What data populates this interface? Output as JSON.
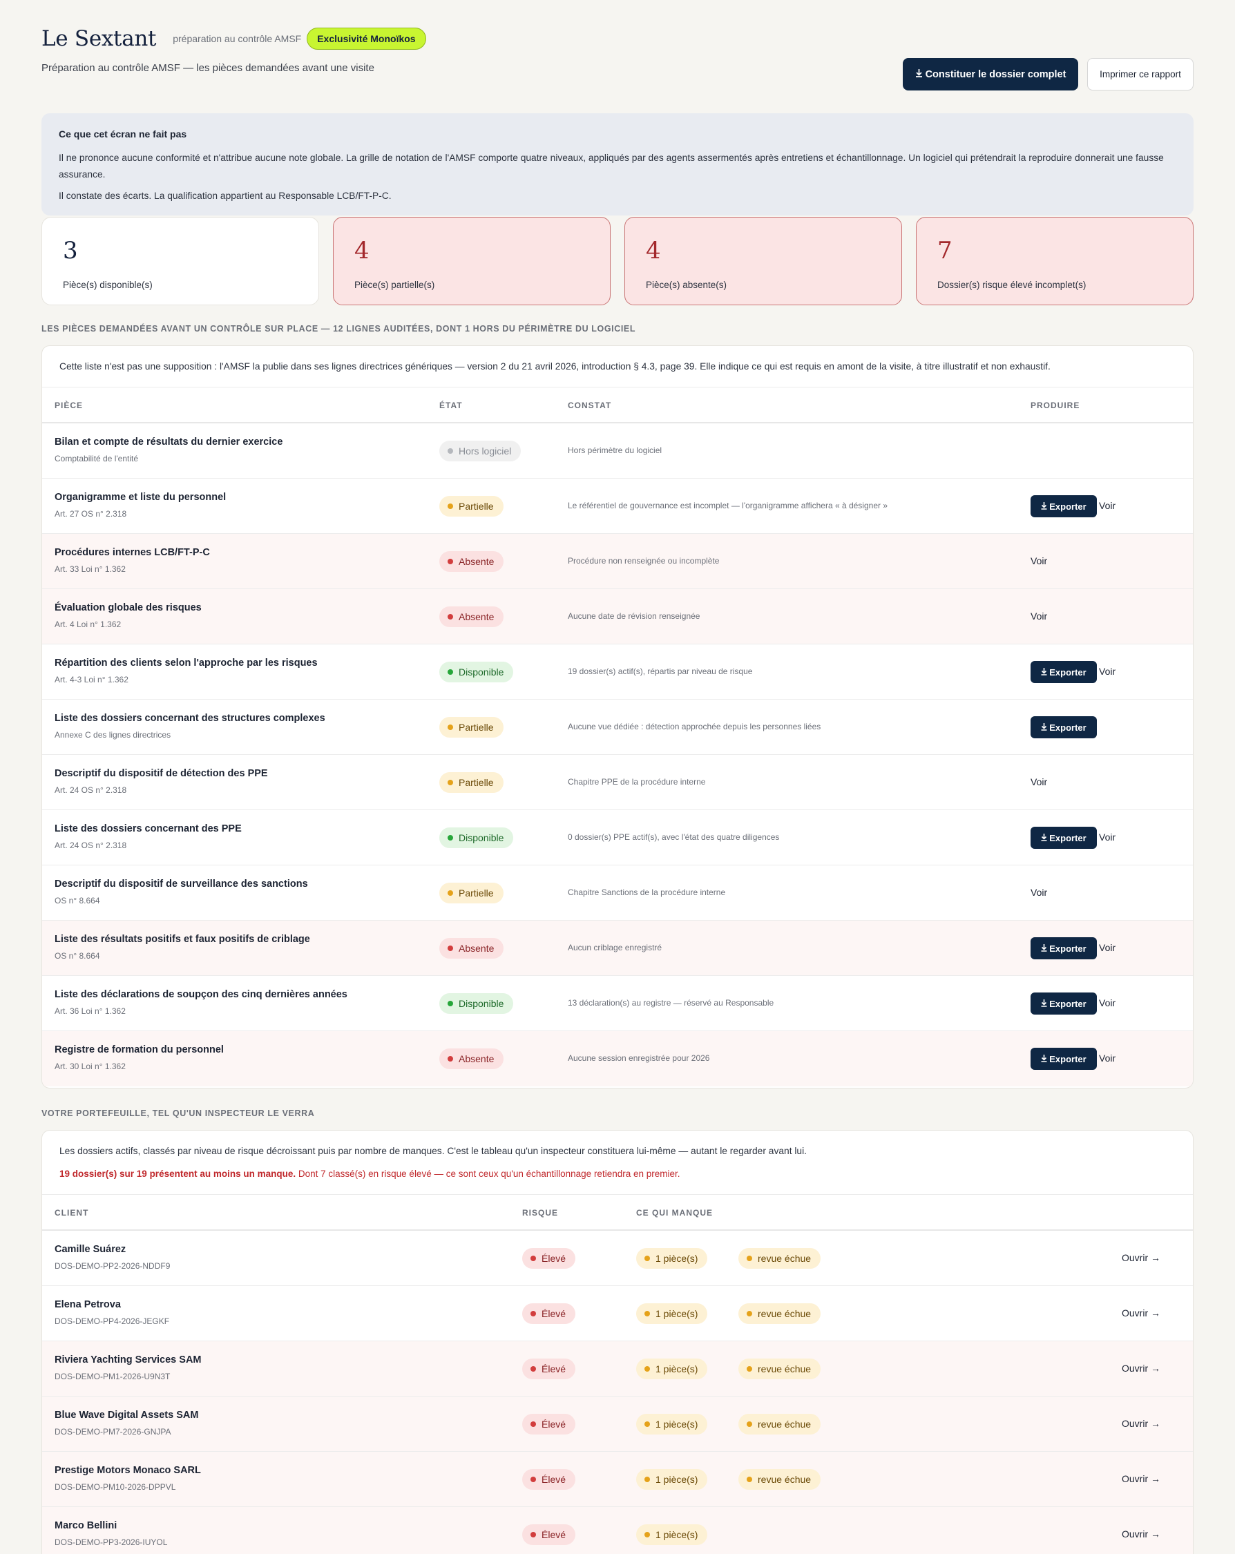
{
  "header": {
    "brand": "Le Sextant",
    "brand_sub": "préparation au contrôle AMSF",
    "badge": "Exclusivité Monoïkos",
    "subtitle": "Préparation au contrôle AMSF — les pièces demandées avant une visite",
    "primary_button": "Constituer le dossier complet",
    "primary_button_icon": "download-icon",
    "secondary_button": "Imprimer ce rapport"
  },
  "notice": {
    "title": "Ce que cet écran ne fait pas",
    "p1": "Il ne prononce aucune conformité et n'attribue aucune note globale. La grille de notation de l'AMSF comporte quatre niveaux, appliqués par des agents assermentés après entretiens et échantillonnage. Un logiciel qui prétendrait la reproduire donnerait une fausse assurance.",
    "p2": "Il constate des écarts. La qualification appartient au Responsable LCB/FT-P-C."
  },
  "stats": [
    {
      "value": "3",
      "label": "Pièce(s) disponible(s)",
      "tone": "neutral"
    },
    {
      "value": "4",
      "label": "Pièce(s) partielle(s)",
      "tone": "alert"
    },
    {
      "value": "4",
      "label": "Pièce(s) absente(s)",
      "tone": "alert"
    },
    {
      "value": "7",
      "label": "Dossier(s) risque élevé incomplet(s)",
      "tone": "alert"
    }
  ],
  "pieces": {
    "section_title": "Les pièces demandées avant un contrôle sur place — 12 lignes auditées, dont 1 hors du périmètre du logiciel",
    "intro": "Cette liste n'est pas une supposition : l'AMSF la publie dans ses lignes directrices génériques — version 2 du 21 avril 2026, introduction § 4.3, page 39. Elle indique ce qui est requis en amont de la visite, à titre illustratif et non exhaustif.",
    "columns": {
      "piece": "Pièce",
      "etat": "État",
      "constat": "Constat",
      "produire": "Produire"
    },
    "export_label": "Exporter",
    "voir_label": "Voir",
    "rows": [
      {
        "title": "Bilan et compte de résultats du dernier exercice",
        "ref": "Comptabilité de l'entité",
        "status": "Hors logiciel",
        "kind": "hors",
        "constat": "Hors périmètre du logiciel",
        "export": false,
        "voir": false,
        "tint": false
      },
      {
        "title": "Organigramme et liste du personnel",
        "ref": "Art. 27 OS n° 2.318",
        "status": "Partielle",
        "kind": "partielle",
        "constat": "Le référentiel de gouvernance est incomplet — l'organigramme affichera « à désigner »",
        "export": true,
        "voir": true,
        "tint": false
      },
      {
        "title": "Procédures internes LCB/FT-P-C",
        "ref": "Art. 33 Loi n° 1.362",
        "status": "Absente",
        "kind": "absente",
        "constat": "Procédure non renseignée ou incomplète",
        "export": false,
        "voir": true,
        "tint": true
      },
      {
        "title": "Évaluation globale des risques",
        "ref": "Art. 4 Loi n° 1.362",
        "status": "Absente",
        "kind": "absente",
        "constat": "Aucune date de révision renseignée",
        "export": false,
        "voir": true,
        "tint": true
      },
      {
        "title": "Répartition des clients selon l'approche par les risques",
        "ref": "Art. 4-3 Loi n° 1.362",
        "status": "Disponible",
        "kind": "dispo",
        "constat": "19 dossier(s) actif(s), répartis par niveau de risque",
        "export": true,
        "voir": true,
        "tint": false
      },
      {
        "title": "Liste des dossiers concernant des structures complexes",
        "ref": "Annexe C des lignes directrices",
        "status": "Partielle",
        "kind": "partielle",
        "constat": "Aucune vue dédiée : détection approchée depuis les personnes liées",
        "export": true,
        "voir": false,
        "tint": false
      },
      {
        "title": "Descriptif du dispositif de détection des PPE",
        "ref": "Art. 24 OS n° 2.318",
        "status": "Partielle",
        "kind": "partielle",
        "constat": "Chapitre PPE de la procédure interne",
        "export": false,
        "voir": true,
        "tint": false
      },
      {
        "title": "Liste des dossiers concernant des PPE",
        "ref": "Art. 24 OS n° 2.318",
        "status": "Disponible",
        "kind": "dispo",
        "constat": "0 dossier(s) PPE actif(s), avec l'état des quatre diligences",
        "export": true,
        "voir": true,
        "tint": false
      },
      {
        "title": "Descriptif du dispositif de surveillance des sanctions",
        "ref": "OS n° 8.664",
        "status": "Partielle",
        "kind": "partielle",
        "constat": "Chapitre Sanctions de la procédure interne",
        "export": false,
        "voir": true,
        "tint": false
      },
      {
        "title": "Liste des résultats positifs et faux positifs de criblage",
        "ref": "OS n° 8.664",
        "status": "Absente",
        "kind": "absente",
        "constat": "Aucun criblage enregistré",
        "export": true,
        "voir": true,
        "tint": true
      },
      {
        "title": "Liste des déclarations de soupçon des cinq dernières années",
        "ref": "Art. 36 Loi n° 1.362",
        "status": "Disponible",
        "kind": "dispo",
        "constat": "13 déclaration(s) au registre — réservé au Responsable",
        "export": true,
        "voir": true,
        "tint": false
      },
      {
        "title": "Registre de formation du personnel",
        "ref": "Art. 30 Loi n° 1.362",
        "status": "Absente",
        "kind": "absente",
        "constat": "Aucune session enregistrée pour 2026",
        "export": true,
        "voir": true,
        "tint": true
      }
    ]
  },
  "portfolio": {
    "section_title": "Votre portefeuille, tel qu'un inspecteur le verra",
    "intro": "Les dossiers actifs, classés par niveau de risque décroissant puis par nombre de manques. C'est le tableau qu'un inspecteur constituera lui-même — autant le regarder avant lui.",
    "alert_strong": "19 dossier(s) sur 19 présentent au moins un manque.",
    "alert_rest": " Dont 7 classé(s) en risque élevé — ce sont ceux qu'un échantillonnage retiendra en premier.",
    "columns": {
      "client": "Client",
      "risque": "Risque",
      "manque": "Ce qui manque"
    },
    "open_label": "Ouvrir →",
    "rows": [
      {
        "name": "Camille Suárez",
        "ref": "DOS-DEMO-PP2-2026-NDDF9",
        "risk": "Élevé",
        "pieces": "1 pièce(s)",
        "revue": "revue échue",
        "tint": false
      },
      {
        "name": "Elena Petrova",
        "ref": "DOS-DEMO-PP4-2026-JEGKF",
        "risk": "Élevé",
        "pieces": "1 pièce(s)",
        "revue": "revue échue",
        "tint": false
      },
      {
        "name": "Riviera Yachting Services SAM",
        "ref": "DOS-DEMO-PM1-2026-U9N3T",
        "risk": "Élevé",
        "pieces": "1 pièce(s)",
        "revue": "revue échue",
        "tint": true
      },
      {
        "name": "Blue Wave Digital Assets SAM",
        "ref": "DOS-DEMO-PM7-2026-GNJPA",
        "risk": "Élevé",
        "pieces": "1 pièce(s)",
        "revue": "revue échue",
        "tint": true
      },
      {
        "name": "Prestige Motors Monaco SARL",
        "ref": "DOS-DEMO-PM10-2026-DPPVL",
        "risk": "Élevé",
        "pieces": "1 pièce(s)",
        "revue": "revue échue",
        "tint": true
      },
      {
        "name": "Marco Bellini",
        "ref": "DOS-DEMO-PP3-2026-IUYOL",
        "risk": "Élevé",
        "pieces": "1 pièce(s)",
        "revue": "",
        "tint": true
      }
    ]
  }
}
